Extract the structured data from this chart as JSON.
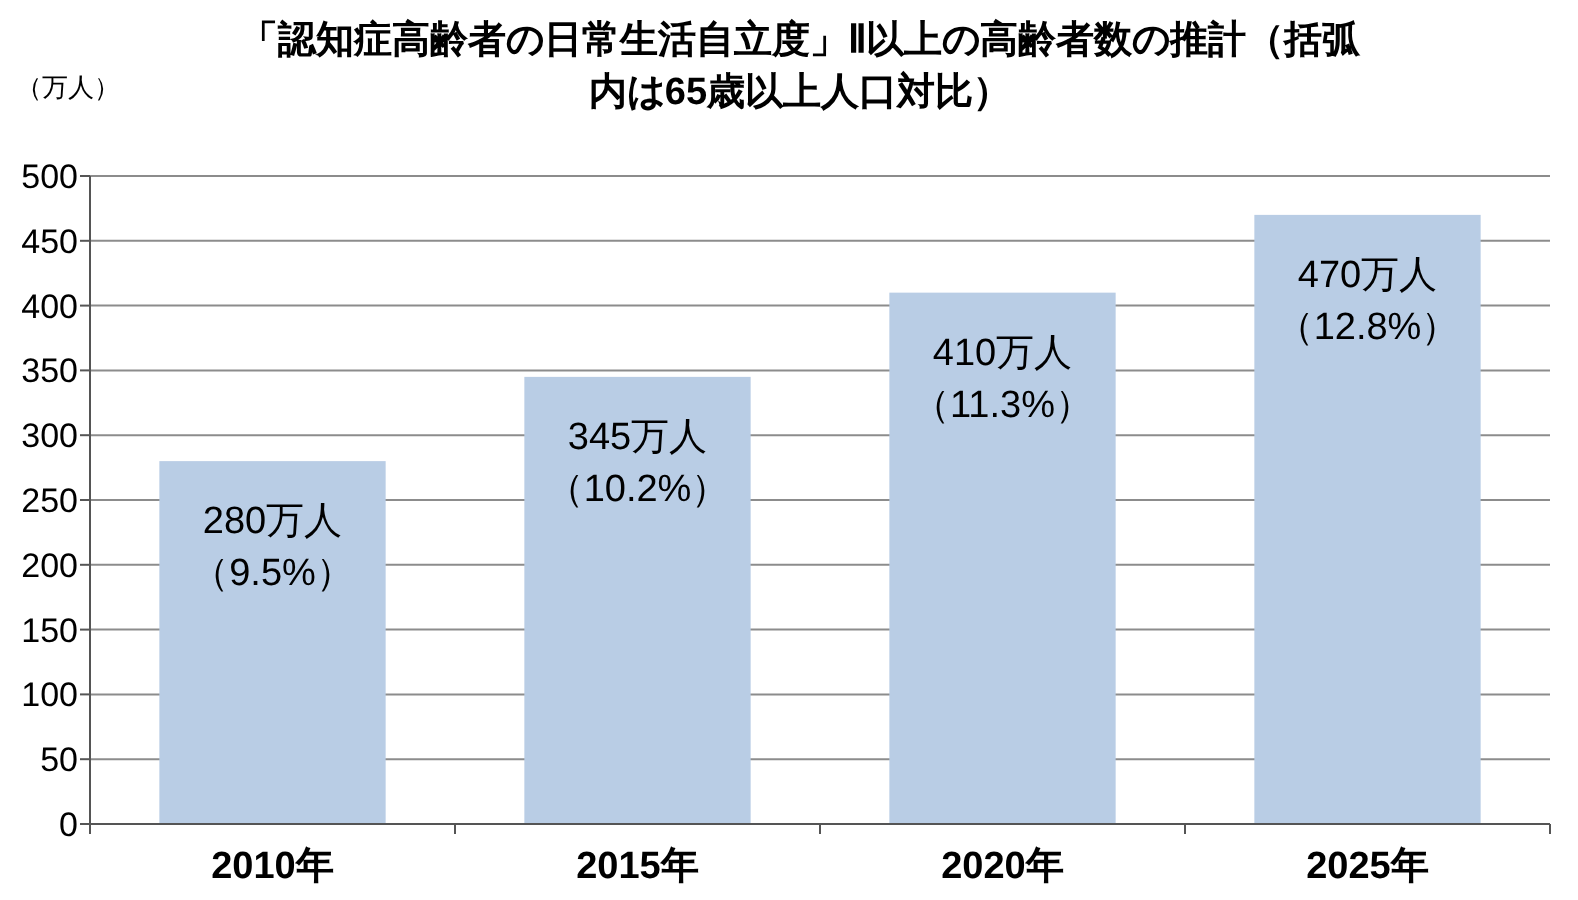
{
  "chart_data": {
    "type": "bar",
    "title": "「認知症高齢者の日常生活自立度」Ⅱ以上の高齢者数の推計（括弧内は65歳以上人口対比）",
    "ylabel": "（万人）",
    "categories": [
      "2010年",
      "2015年",
      "2020年",
      "2025年"
    ],
    "values": [
      280,
      345,
      410,
      470
    ],
    "color": "#b9cde5",
    "value_labels": [
      "280万人（9.5%）",
      "345万人（10.2%）",
      "410万人（11.3%）",
      "470万人（12.8%）"
    ],
    "ylim": [
      0,
      500
    ],
    "yticks": [
      0,
      50,
      100,
      150,
      200,
      250,
      300,
      350,
      400,
      450,
      500
    ],
    "grid": "y"
  }
}
